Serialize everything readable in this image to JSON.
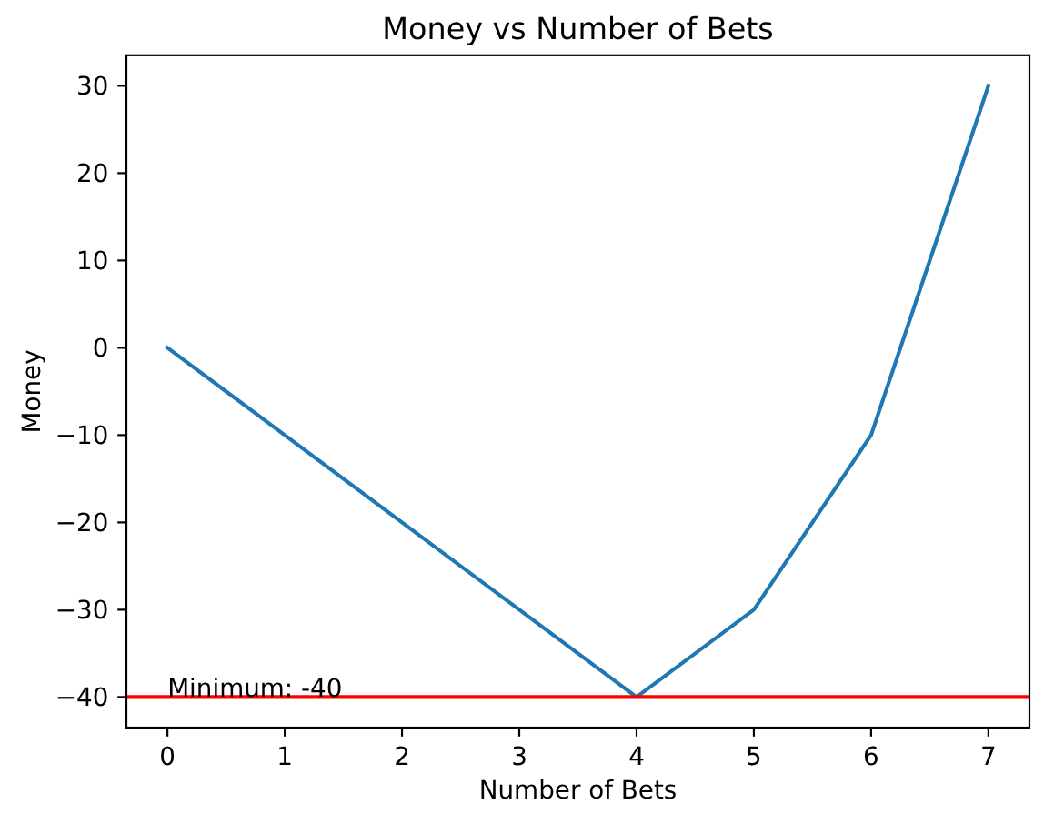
{
  "chart_data": {
    "type": "line",
    "title": "Money vs Number of Bets",
    "xlabel": "Number of Bets",
    "ylabel": "Money",
    "x": [
      0,
      1,
      2,
      3,
      4,
      5,
      6,
      7
    ],
    "series": [
      {
        "color": "#1f77b4",
        "values": [
          0,
          -10,
          -20,
          -30,
          -40,
          -30,
          -10,
          30
        ]
      }
    ],
    "xlim": [
      -0.35,
      7.35
    ],
    "ylim": [
      -43.5,
      33.5
    ],
    "xticks": [
      0,
      1,
      2,
      3,
      4,
      5,
      6,
      7
    ],
    "yticks": [
      {
        "value": -40,
        "label": "−40"
      },
      {
        "value": -30,
        "label": "−30"
      },
      {
        "value": -20,
        "label": "−20"
      },
      {
        "value": -10,
        "label": "−10"
      },
      0,
      10,
      20,
      30
    ],
    "ref_lines": [
      {
        "axis": "y",
        "value": -40,
        "color": "#ff0000"
      }
    ],
    "annotations": [
      {
        "text": "Minimum: -40",
        "x": 0,
        "y": -40
      }
    ]
  }
}
